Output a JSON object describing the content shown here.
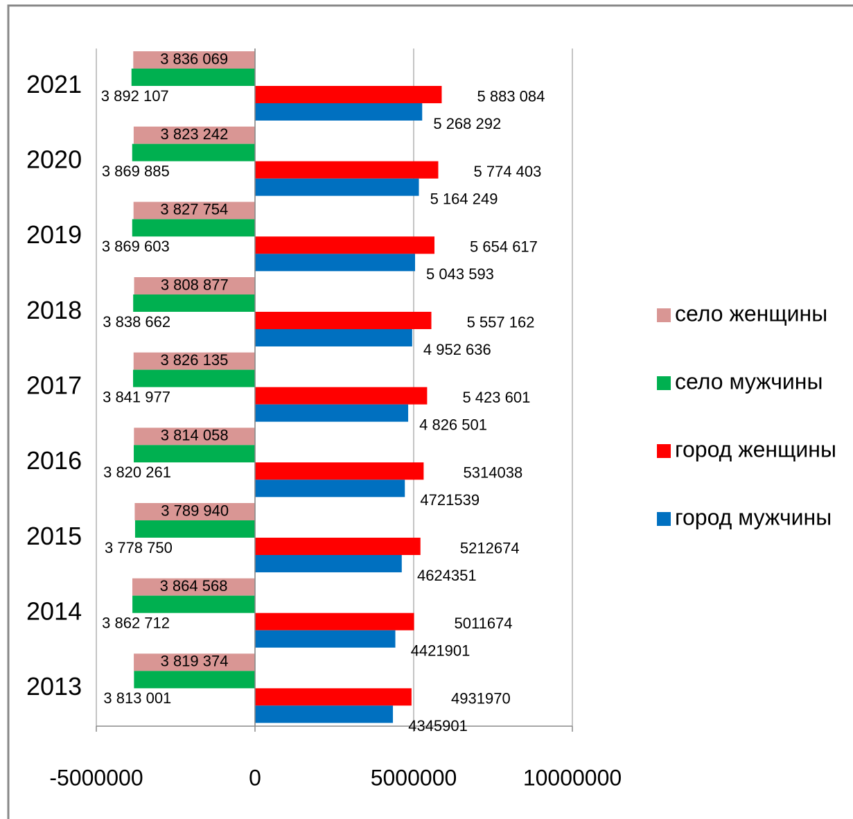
{
  "chart_data": {
    "type": "hbar",
    "categories": [
      "2013",
      "2014",
      "2015",
      "2016",
      "2017",
      "2018",
      "2019",
      "2020",
      "2021"
    ],
    "series": [
      {
        "name": "село женщины",
        "color": "#d99694",
        "values": [
          -3819374,
          -3864568,
          -3789940,
          -3814058,
          -3826135,
          -3808877,
          -3827754,
          -3823242,
          -3836069
        ],
        "value_labels": [
          "3 819 374",
          "3 864 568",
          "3 789 940",
          "3 814 058",
          "3 826 135",
          "3 808 877",
          "3 827 754",
          "3 823 242",
          "3 836 069"
        ]
      },
      {
        "name": "село мужчины",
        "color": "#00b050",
        "values": [
          -3813001,
          -3862712,
          -3778750,
          -3820261,
          -3841977,
          -3838662,
          -3869603,
          -3869885,
          -3892107
        ],
        "value_labels": [
          "3 813 001",
          "3 862 712",
          "3 778 750",
          "3 820 261",
          "3 841 977",
          "3 838 662",
          "3 869 603",
          "3 869 885",
          "3 892 107"
        ]
      },
      {
        "name": "город женщины",
        "color": "#ff0000",
        "values": [
          4931970,
          5011674,
          5212674,
          5314038,
          5423601,
          5557162,
          5654617,
          5774403,
          5883084
        ],
        "value_labels": [
          "4931970",
          "5011674",
          "5212674",
          "5314038",
          "5 423 601",
          "5 557 162",
          "5 654 617",
          "5 774 403",
          "5 883 084"
        ]
      },
      {
        "name": "город мужчины",
        "color": "#0070c0",
        "values": [
          4345901,
          4421901,
          4624351,
          4721539,
          4826501,
          4952636,
          5043593,
          5164249,
          5268292
        ],
        "value_labels": [
          "4345901",
          "4421901",
          "4624351",
          "4721539",
          "4 826 501",
          "4 952 636",
          "5 043 593",
          "5 164 249",
          "5 268 292"
        ]
      }
    ],
    "xlim": [
      -5000000,
      10000000
    ],
    "xticks": [
      -5000000,
      0,
      5000000,
      10000000
    ],
    "grid": true,
    "legend": "right"
  }
}
